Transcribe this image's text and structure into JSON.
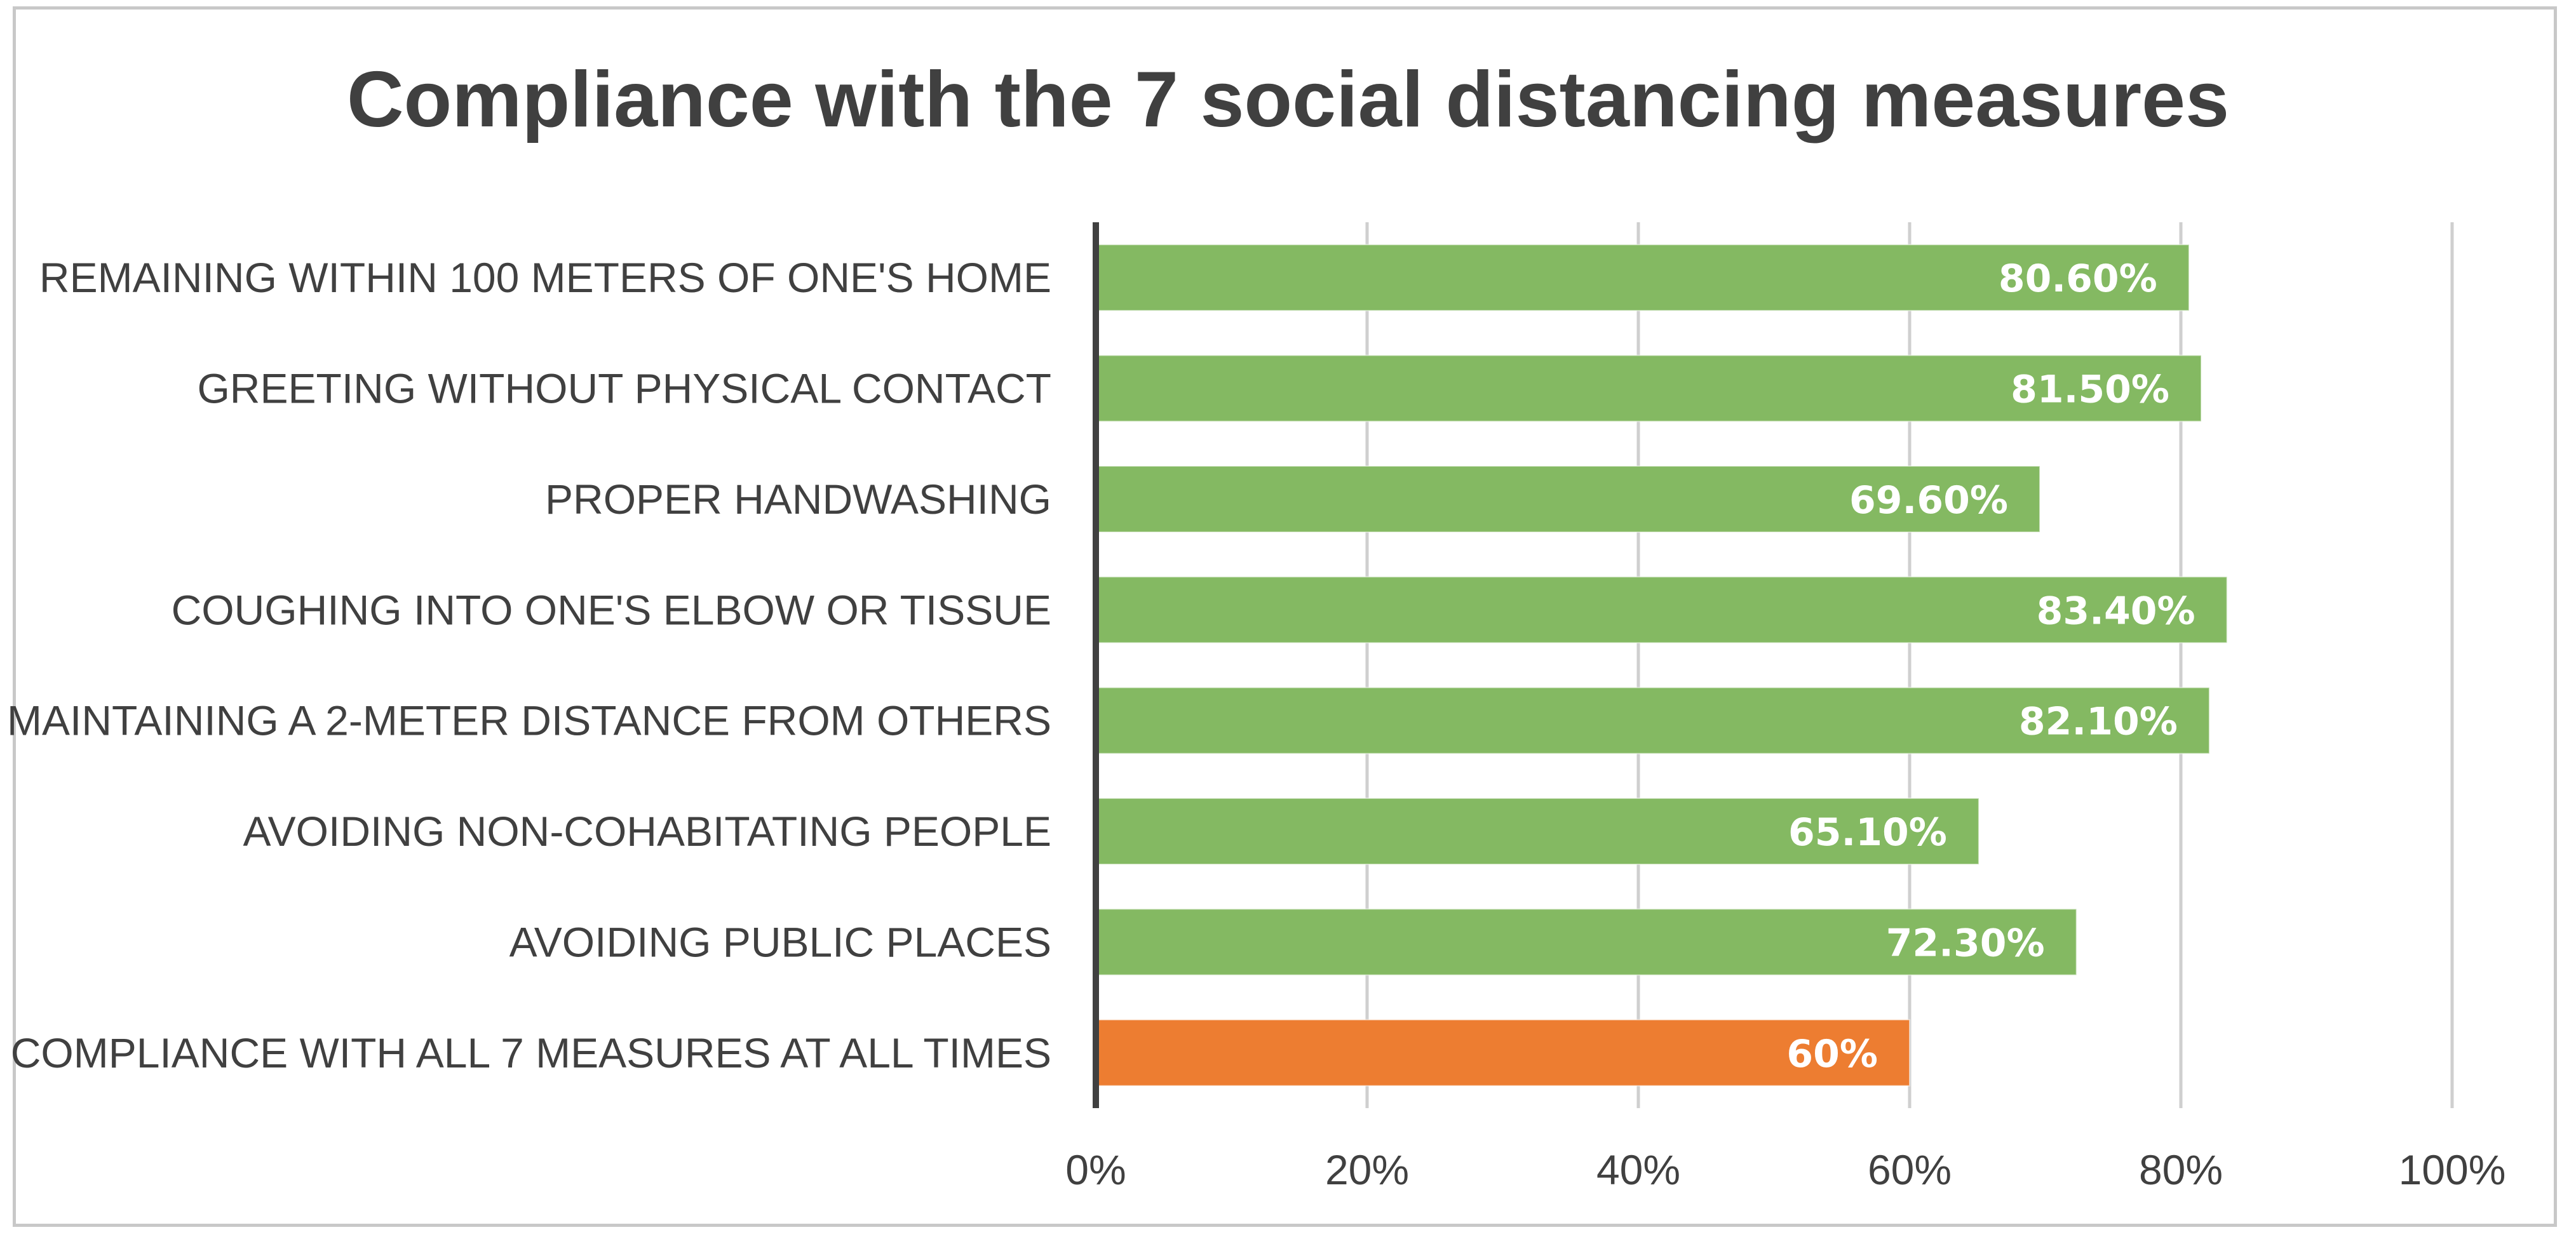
{
  "chart_data": {
    "type": "bar",
    "orientation": "horizontal",
    "title": "Compliance with the 7 social distancing measures",
    "categories": [
      "REMAINING WITHIN 100 METERS OF ONE'S HOME",
      "GREETING WITHOUT PHYSICAL CONTACT",
      "PROPER HANDWASHING",
      "COUGHING INTO ONE'S ELBOW OR TISSUE",
      "MAINTAINING A 2-METER DISTANCE FROM OTHERS",
      "AVOIDING NON-COHABITATING PEOPLE",
      "AVOIDING PUBLIC PLACES",
      "COMPLIANCE WITH ALL 7 MEASURES AT ALL TIMES"
    ],
    "values": [
      80.6,
      81.5,
      69.6,
      83.4,
      82.1,
      65.1,
      72.3,
      60
    ],
    "data_labels": [
      "80.60%",
      "81.50%",
      "69.60%",
      "83.40%",
      "82.10%",
      "65.10%",
      "72.30%",
      "60%"
    ],
    "bar_colors": [
      "#84b962",
      "#84b962",
      "#84b962",
      "#84b962",
      "#84b962",
      "#84b962",
      "#84b962",
      "#ed7d31"
    ],
    "xlim": [
      0,
      100
    ],
    "xticks": [
      0,
      20,
      40,
      60,
      80,
      100
    ],
    "xtick_labels": [
      "0%",
      "20%",
      "40%",
      "60%",
      "80%",
      "100%"
    ],
    "xlabel": "",
    "ylabel": "",
    "grid": true,
    "legend": "none"
  }
}
